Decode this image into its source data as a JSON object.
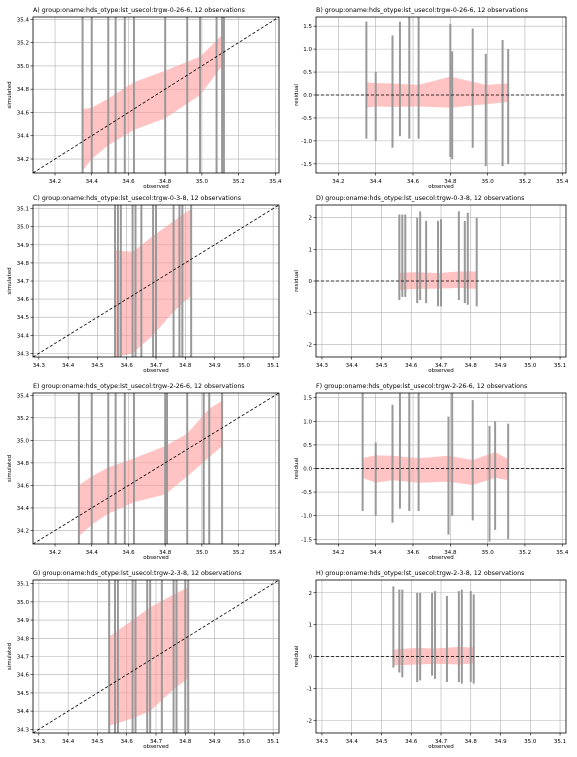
{
  "figure": {
    "background": "#ffffff"
  },
  "colors": {
    "band": "#ff9b9b",
    "obs_lines": "#999999",
    "grid": "#b0b0b0",
    "ref_line": "#000000"
  },
  "chart_data": [
    {
      "id": "A",
      "kind": "scatter",
      "type": "area",
      "title": "A) group:oname:hds_otype:lst_usecol:trgw-0-26-6, 12 observations",
      "xlabel": "observed",
      "ylabel": "simulated",
      "xlim": [
        34.08,
        35.42
      ],
      "ylim": [
        34.08,
        35.42
      ],
      "xticks": [
        "34.2",
        "34.4",
        "34.6",
        "34.8",
        "35.0",
        "35.2",
        "35.4"
      ],
      "yticks": [
        "34.2",
        "34.4",
        "34.6",
        "34.8",
        "35.0",
        "35.2",
        "35.4"
      ],
      "obs_x": [
        34.35,
        34.4,
        34.49,
        34.53,
        34.58,
        34.63,
        34.8,
        34.92,
        34.99,
        35.08,
        35.11,
        35.12
      ],
      "band_x": [
        34.35,
        34.4,
        34.49,
        34.63,
        34.8,
        34.99,
        35.12
      ],
      "band_lo": [
        34.1,
        34.2,
        34.32,
        34.45,
        34.55,
        34.75,
        35.02
      ],
      "band_hi": [
        34.63,
        34.64,
        34.72,
        34.86,
        34.96,
        35.08,
        35.28
      ],
      "one_to_one": true
    },
    {
      "id": "B",
      "kind": "residual",
      "type": "area",
      "title": "B) group:oname:hds_otype:lst_usecol:trgw-0-26-6, 12 observations",
      "xlabel": "observed",
      "ylabel": "residual",
      "xlim": [
        34.08,
        35.42
      ],
      "ylim": [
        -1.7,
        1.7
      ],
      "xticks": [
        "34.2",
        "34.4",
        "34.6",
        "34.8",
        "35.0",
        "35.2",
        "35.4"
      ],
      "yticks": [
        "-1.5",
        "-1.0",
        "-0.5",
        "0.0",
        "0.5",
        "1.0",
        "1.5"
      ],
      "obs_x": [
        34.35,
        34.4,
        34.49,
        34.53,
        34.58,
        34.63,
        34.8,
        34.81,
        34.92,
        34.99,
        35.08,
        35.11
      ],
      "res_lo": [
        -0.95,
        -1.0,
        -1.15,
        -0.9,
        -0.95,
        -0.95,
        -1.35,
        -1.4,
        -1.15,
        -1.55,
        -1.55,
        -1.5
      ],
      "res_hi": [
        1.6,
        0.5,
        1.3,
        1.6,
        1.7,
        1.7,
        1.55,
        0.95,
        1.45,
        0.9,
        1.2,
        1.0
      ],
      "band_x": [
        34.35,
        34.4,
        34.49,
        34.63,
        34.8,
        34.99,
        35.11
      ],
      "band_lo": [
        -0.28,
        -0.25,
        -0.26,
        -0.25,
        -0.28,
        -0.2,
        -0.15
      ],
      "band_hi": [
        0.28,
        0.26,
        0.25,
        0.22,
        0.4,
        0.22,
        0.25
      ],
      "zero_line": true
    },
    {
      "id": "C",
      "kind": "scatter",
      "type": "area",
      "title": "C) group:oname:hds_otype:lst_usecol:trgw-0-3-8, 12 observations",
      "xlabel": "observed",
      "ylabel": "simulated",
      "xlim": [
        34.28,
        35.12
      ],
      "ylim": [
        34.28,
        35.12
      ],
      "xticks": [
        "34.3",
        "34.4",
        "34.5",
        "34.6",
        "34.7",
        "34.8",
        "34.9",
        "35.0",
        "35.1"
      ],
      "yticks": [
        "34.3",
        "34.4",
        "34.5",
        "34.6",
        "34.7",
        "34.8",
        "34.9",
        "35.0",
        "35.1"
      ],
      "obs_x": [
        34.56,
        34.57,
        34.58,
        34.62,
        34.63,
        34.65,
        34.69,
        34.7,
        34.76,
        34.78,
        34.79,
        34.82
      ],
      "band_x": [
        34.56,
        34.62,
        34.69,
        34.76,
        34.82
      ],
      "band_lo": [
        34.28,
        34.3,
        34.4,
        34.53,
        34.62
      ],
      "band_hi": [
        34.87,
        34.86,
        34.95,
        35.03,
        35.1
      ],
      "one_to_one": true
    },
    {
      "id": "D",
      "kind": "residual",
      "type": "area",
      "title": "D) group:oname:hds_otype:lst_usecol:trgw-0-3-8, 12 observations",
      "xlabel": "observed",
      "ylabel": "residual",
      "xlim": [
        34.28,
        35.12
      ],
      "ylim": [
        -2.4,
        2.4
      ],
      "xticks": [
        "34.3",
        "34.4",
        "34.5",
        "34.6",
        "34.7",
        "34.8",
        "34.9",
        "35.0",
        "35.1"
      ],
      "yticks": [
        "-2",
        "-1",
        "0",
        "1",
        "2"
      ],
      "obs_x": [
        34.56,
        34.57,
        34.58,
        34.62,
        34.63,
        34.65,
        34.69,
        34.7,
        34.76,
        34.78,
        34.79,
        34.82
      ],
      "res_lo": [
        -0.6,
        -0.5,
        -0.5,
        -0.7,
        -0.6,
        -0.7,
        -0.8,
        -0.8,
        -0.6,
        -0.7,
        -0.75,
        -0.8
      ],
      "res_hi": [
        2.1,
        2.1,
        2.1,
        2.0,
        2.2,
        1.9,
        1.9,
        1.95,
        2.2,
        1.9,
        2.15,
        2.0
      ],
      "band_x": [
        34.56,
        34.62,
        34.69,
        34.76,
        34.82
      ],
      "band_lo": [
        -0.28,
        -0.25,
        -0.24,
        -0.22,
        -0.25
      ],
      "band_hi": [
        0.26,
        0.28,
        0.25,
        0.3,
        0.3
      ],
      "zero_line": true
    },
    {
      "id": "E",
      "kind": "scatter",
      "type": "area",
      "title": "E) group:oname:hds_otype:lst_usecol:trgw-2-26-6, 12 observations",
      "xlabel": "observed",
      "ylabel": "simulated",
      "xlim": [
        34.08,
        35.42
      ],
      "ylim": [
        34.08,
        35.42
      ],
      "xticks": [
        "34.2",
        "34.4",
        "34.6",
        "34.8",
        "35.0",
        "35.2",
        "35.4"
      ],
      "yticks": [
        "34.2",
        "34.4",
        "34.6",
        "34.8",
        "35.0",
        "35.2",
        "35.4"
      ],
      "obs_x": [
        34.33,
        34.4,
        34.49,
        34.53,
        34.58,
        34.63,
        34.8,
        34.81,
        34.92,
        35.01,
        35.04,
        35.11
      ],
      "band_x": [
        34.33,
        34.4,
        34.49,
        34.63,
        34.8,
        34.92,
        35.04,
        35.11
      ],
      "band_lo": [
        34.15,
        34.25,
        34.35,
        34.45,
        34.52,
        34.68,
        34.85,
        34.95
      ],
      "band_hi": [
        34.6,
        34.68,
        34.76,
        34.84,
        34.95,
        35.06,
        35.28,
        35.35
      ],
      "one_to_one": true
    },
    {
      "id": "F",
      "kind": "residual",
      "type": "area",
      "title": "F) group:oname:hds_otype:lst_usecol:trgw-2-26-6, 12 observations",
      "xlabel": "observed",
      "ylabel": "residual",
      "xlim": [
        34.08,
        35.42
      ],
      "ylim": [
        -1.6,
        1.6
      ],
      "xticks": [
        "34.2",
        "34.4",
        "34.6",
        "34.8",
        "35.0",
        "35.2",
        "35.4"
      ],
      "yticks": [
        "-1.5",
        "-1.0",
        "-0.5",
        "0.0",
        "0.5",
        "1.0",
        "1.5"
      ],
      "obs_x": [
        34.33,
        34.4,
        34.49,
        34.53,
        34.58,
        34.63,
        34.79,
        34.81,
        34.92,
        35.01,
        35.04,
        35.11
      ],
      "res_lo": [
        -0.9,
        -1.0,
        -1.15,
        -0.85,
        -0.9,
        -0.9,
        -1.4,
        -1.0,
        -1.1,
        -1.55,
        -1.3,
        -1.5
      ],
      "res_hi": [
        1.6,
        0.55,
        1.35,
        1.6,
        1.6,
        1.6,
        1.1,
        1.6,
        1.45,
        0.9,
        1.0,
        0.95
      ],
      "band_x": [
        34.33,
        34.4,
        34.49,
        34.63,
        34.79,
        34.92,
        35.04,
        35.11
      ],
      "band_lo": [
        -0.2,
        -0.3,
        -0.25,
        -0.3,
        -0.28,
        -0.35,
        -0.2,
        -0.25
      ],
      "band_hi": [
        0.22,
        0.28,
        0.27,
        0.22,
        0.27,
        0.18,
        0.35,
        0.2
      ],
      "zero_line": true
    },
    {
      "id": "G",
      "kind": "scatter",
      "type": "area",
      "title": "G) group:oname:hds_otype:lst_usecol:trgw-2-3-8, 12 observations",
      "xlabel": "observed",
      "ylabel": "simulated",
      "xlim": [
        34.28,
        35.12
      ],
      "ylim": [
        34.28,
        35.12
      ],
      "xticks": [
        "34.3",
        "34.4",
        "34.5",
        "34.6",
        "34.7",
        "34.8",
        "34.9",
        "35.0",
        "35.1"
      ],
      "yticks": [
        "34.3",
        "34.4",
        "34.5",
        "34.6",
        "34.7",
        "34.8",
        "34.9",
        "35.0",
        "35.1"
      ],
      "obs_x": [
        34.54,
        34.56,
        34.57,
        34.62,
        34.63,
        34.67,
        34.68,
        34.72,
        34.76,
        34.77,
        34.8,
        34.81
      ],
      "band_x": [
        34.54,
        34.62,
        34.68,
        34.76,
        34.81
      ],
      "band_lo": [
        34.32,
        34.36,
        34.4,
        34.52,
        34.58
      ],
      "band_hi": [
        34.81,
        34.9,
        34.97,
        35.04,
        35.08
      ],
      "one_to_one": true
    },
    {
      "id": "H",
      "kind": "residual",
      "type": "area",
      "title": "H) group:oname:hds_otype:lst_usecol:trgw-2-3-8, 12 observations",
      "xlabel": "observed",
      "ylabel": "residual",
      "xlim": [
        34.28,
        35.12
      ],
      "ylim": [
        -2.4,
        2.4
      ],
      "xticks": [
        "34.3",
        "34.4",
        "34.5",
        "34.6",
        "34.7",
        "34.8",
        "34.9",
        "35.0",
        "35.1"
      ],
      "yticks": [
        "-2",
        "-1",
        "0",
        "1",
        "2"
      ],
      "obs_x": [
        34.54,
        34.56,
        34.57,
        34.62,
        34.63,
        34.67,
        34.68,
        34.72,
        34.76,
        34.77,
        34.8,
        34.81
      ],
      "res_lo": [
        -0.35,
        -0.5,
        -0.65,
        -0.8,
        -0.75,
        -0.6,
        -0.7,
        -0.8,
        -0.8,
        -0.85,
        -0.8,
        -0.85
      ],
      "res_hi": [
        2.2,
        2.1,
        2.1,
        2.0,
        2.0,
        2.0,
        2.05,
        1.9,
        2.05,
        2.1,
        2.05,
        1.95
      ],
      "band_x": [
        34.54,
        34.62,
        34.68,
        34.76,
        34.81
      ],
      "band_lo": [
        -0.28,
        -0.25,
        -0.23,
        -0.25,
        -0.22
      ],
      "band_hi": [
        0.22,
        0.27,
        0.25,
        0.3,
        0.28
      ],
      "zero_line": true
    }
  ]
}
